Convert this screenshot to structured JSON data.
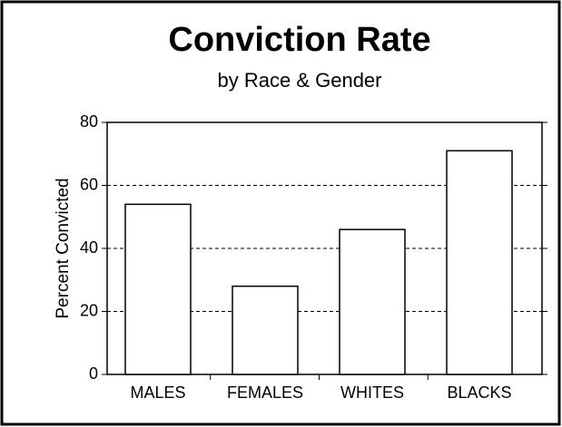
{
  "chart_data": {
    "type": "bar",
    "title": "Conviction Rate",
    "subtitle": "by Race & Gender",
    "y_label": "Percent Convicted",
    "categories": [
      "MALES",
      "FEMALES",
      "WHITES",
      "BLACKS"
    ],
    "values": [
      54,
      28,
      46,
      71
    ],
    "color": "#ffffff",
    "ylim": [
      0,
      80
    ],
    "yticks": [
      0,
      20,
      40,
      60,
      80
    ],
    "grid": true
  }
}
